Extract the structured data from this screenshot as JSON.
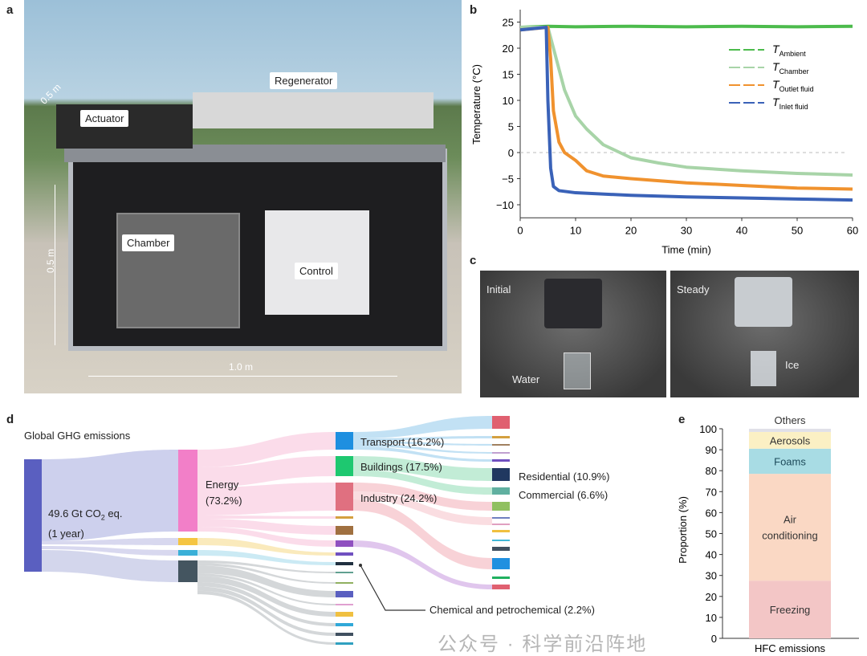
{
  "panels": {
    "a": "a",
    "b": "b",
    "c": "c",
    "d": "d",
    "e": "e"
  },
  "photo_a": {
    "labels": {
      "regenerator": "Regenerator",
      "actuator": "Actuator",
      "chamber": "Chamber",
      "control": "Control"
    },
    "dims": {
      "depth": "0.5 m",
      "height": "0.5 m",
      "width": "1.0 m"
    }
  },
  "photo_c": {
    "left": {
      "state": "Initial",
      "object": "Water"
    },
    "right": {
      "state": "Steady",
      "object": "Ice"
    }
  },
  "chart_data": [
    {
      "type": "line",
      "xlabel": "Time (min)",
      "ylabel": "Temperature (°C)",
      "xlim": [
        0,
        60
      ],
      "ylim": [
        -12.5,
        26
      ],
      "xticks": [
        0,
        10,
        20,
        30,
        40,
        50,
        60
      ],
      "yticks": [
        25,
        20,
        15,
        10,
        5,
        0,
        -5,
        -10
      ],
      "reference_line": {
        "y": 0,
        "style": "dashed"
      },
      "legend_placement": "top-right",
      "series": [
        {
          "name": "T",
          "sub": "Ambient",
          "color": "#4cbb4c",
          "x": [
            0,
            5,
            10,
            20,
            30,
            40,
            50,
            60
          ],
          "y": [
            24,
            24.2,
            24.1,
            24.2,
            24.1,
            24.2,
            24.1,
            24.2
          ]
        },
        {
          "name": "T",
          "sub": "Chamber",
          "color": "#a8d4a8",
          "x": [
            0,
            5,
            6,
            8,
            10,
            12,
            15,
            18,
            20,
            25,
            30,
            40,
            50,
            60
          ],
          "y": [
            24,
            24,
            20,
            12,
            7,
            4.5,
            1.5,
            0,
            -1,
            -2,
            -2.8,
            -3.5,
            -4,
            -4.3
          ]
        },
        {
          "name": "T",
          "sub": "Outlet fluid",
          "color": "#f0922e",
          "x": [
            0,
            5,
            5.5,
            6,
            7,
            8,
            10,
            12,
            15,
            20,
            30,
            40,
            50,
            60
          ],
          "y": [
            23.5,
            24,
            18,
            8,
            2,
            0,
            -1.5,
            -3.5,
            -4.5,
            -5,
            -5.8,
            -6.3,
            -6.8,
            -7
          ]
        },
        {
          "name": "T",
          "sub": "Inlet fluid",
          "color": "#3a62b8",
          "x": [
            0,
            4.7,
            5,
            5.5,
            6,
            7,
            10,
            20,
            30,
            40,
            50,
            60
          ],
          "y": [
            23.5,
            24,
            10,
            -3,
            -6.5,
            -7.3,
            -7.7,
            -8.2,
            -8.5,
            -8.7,
            -8.9,
            -9.1
          ]
        }
      ]
    },
    {
      "type": "bar",
      "stacked": true,
      "xlabel": "",
      "ylabel": "Proportion (%)",
      "ylim": [
        0,
        100
      ],
      "yticks": [
        0,
        10,
        20,
        30,
        40,
        50,
        60,
        70,
        80,
        90,
        100
      ],
      "categories": [
        "HFC emissions"
      ],
      "series": [
        {
          "name": "Freezing",
          "values": [
            27.5
          ],
          "color": "#f3c6c6"
        },
        {
          "name": "Air conditioning",
          "values": [
            51
          ],
          "color": "#fad8c4",
          "label_lines": [
            "Air",
            "conditioning"
          ]
        },
        {
          "name": "Foams",
          "values": [
            12
          ],
          "color": "#a8dce4"
        },
        {
          "name": "Aerosols",
          "values": [
            8
          ],
          "color": "#fbf0c4"
        },
        {
          "name": "Others",
          "values": [
            1.5
          ],
          "color": "#e0e0e8"
        }
      ]
    }
  ],
  "sankey": {
    "title": "Global GHG emissions",
    "total_line1": "49.6 Gt CO",
    "total_sub": "2",
    "total_line1_tail": " eq.",
    "total_line2": "(1 year)",
    "energy": "Energy",
    "energy_pct": "(73.2%)",
    "transport": "Transport (16.2%)",
    "buildings": "Buildings (17.5%)",
    "industry": "Industry (24.2%)",
    "residential": "Residential (10.9%)",
    "commercial": "Commercial (6.6%)",
    "chemical": "Chemical and petrochemical (2.2%)"
  },
  "watermark": "公众号 · 科学前沿阵地"
}
